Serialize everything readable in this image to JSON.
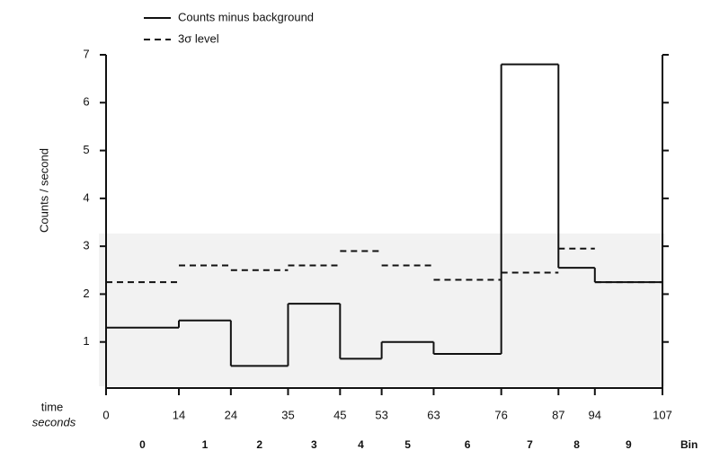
{
  "chart_data": {
    "type": "step",
    "ylabel": "Counts / second",
    "xlabel": [
      "time",
      "seconds"
    ],
    "bin_label": "Bin",
    "bins": [
      0,
      14,
      24,
      35,
      45,
      53,
      63,
      76,
      87,
      94,
      107
    ],
    "categories": [
      "0",
      "1",
      "2",
      "3",
      "4",
      "5",
      "6",
      "7",
      "8",
      "9"
    ],
    "xlim": [
      0,
      107
    ],
    "xticks": [
      0,
      14,
      24,
      35,
      45,
      53,
      63,
      76,
      87,
      94,
      107
    ],
    "ylim": [
      0,
      7
    ],
    "yticks": [
      1,
      2,
      3,
      4,
      5,
      6,
      7
    ],
    "series": [
      {
        "name": "Counts minus background",
        "color": "#111111",
        "style": "solid",
        "values": [
          1.3,
          1.45,
          0.5,
          1.8,
          0.65,
          1.0,
          0.75,
          6.8,
          2.55,
          2.25
        ]
      },
      {
        "name": "3σ level",
        "color": "#111111",
        "style": "dashed",
        "values": [
          2.25,
          2.6,
          2.5,
          2.6,
          2.9,
          2.6,
          2.3,
          2.45,
          2.95,
          2.25
        ]
      }
    ]
  }
}
